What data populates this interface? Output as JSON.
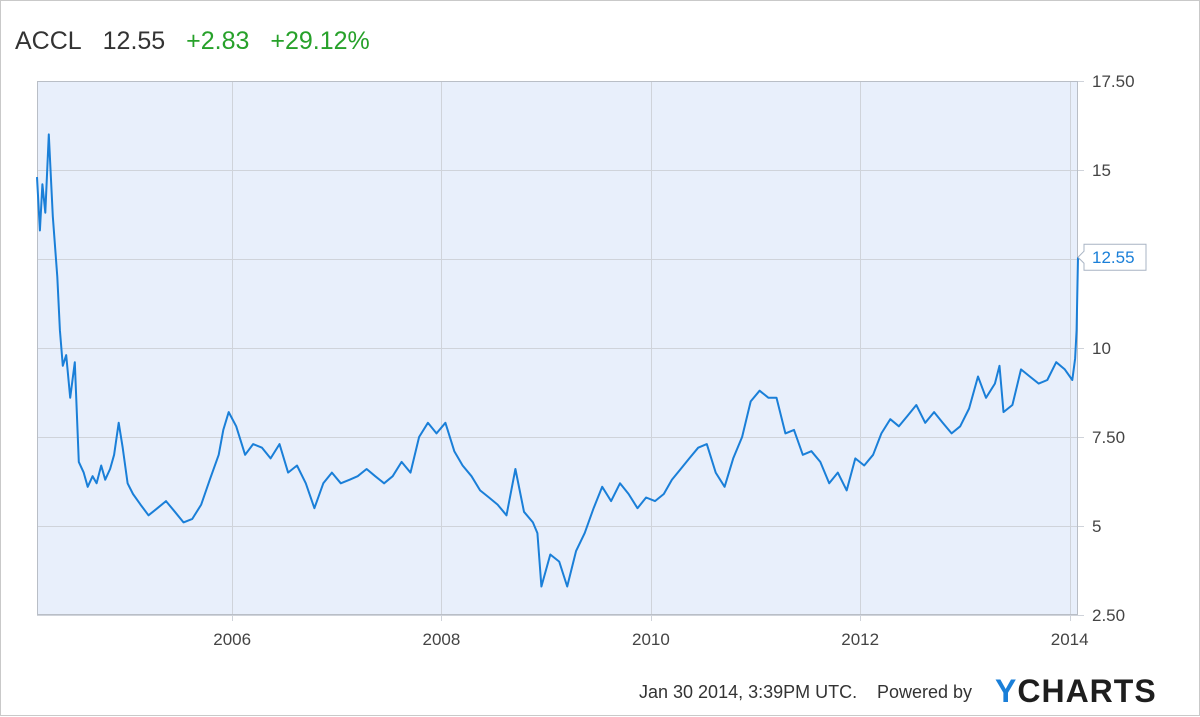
{
  "header": {
    "ticker": "ACCL",
    "price": "12.55",
    "change": "+2.83",
    "change_pct": "+29.12%"
  },
  "footer": {
    "timestamp": "Jan 30 2014, 3:39PM UTC.",
    "powered_by": "Powered by",
    "logo_text": "YCHARTS"
  },
  "colors": {
    "line": "#1a7fd8",
    "plot_bg": "#e8effb",
    "positive": "#27a12a",
    "grid": "#cfd3da"
  },
  "chart_data": {
    "type": "line",
    "title": "",
    "xlabel": "",
    "ylabel": "",
    "xlim": [
      "2004-02-20",
      "2014-01-30"
    ],
    "ylim": [
      2.5,
      17.5
    ],
    "x_ticks": [
      "2006",
      "2008",
      "2010",
      "2012",
      "2014"
    ],
    "x_tick_dates": [
      "2006-01-01",
      "2008-01-01",
      "2010-01-01",
      "2012-01-01",
      "2014-01-01"
    ],
    "y_ticks": [
      2.5,
      5,
      7.5,
      10,
      12.5,
      15,
      17.5
    ],
    "y_tick_labels": [
      "2.50",
      "5",
      "7.50",
      "10",
      "",
      "15",
      "17.50"
    ],
    "grid": true,
    "last_value_label": "12.55",
    "series": [
      {
        "x": [
          "2004-02-20",
          "2004-03-01",
          "2004-03-10",
          "2004-03-20",
          "2004-04-01",
          "2004-04-15",
          "2004-05-01",
          "2004-05-10",
          "2004-05-20",
          "2004-06-01",
          "2004-06-15",
          "2004-07-01",
          "2004-07-15",
          "2004-08-01",
          "2004-08-15",
          "2004-09-01",
          "2004-09-15",
          "2004-10-01",
          "2004-10-15",
          "2004-11-01",
          "2004-11-15",
          "2004-12-01",
          "2004-12-15",
          "2005-01-01",
          "2005-01-20",
          "2005-02-15",
          "2005-03-15",
          "2005-04-15",
          "2005-05-15",
          "2005-06-15",
          "2005-07-15",
          "2005-08-15",
          "2005-09-15",
          "2005-10-15",
          "2005-11-15",
          "2005-12-01",
          "2005-12-20",
          "2006-01-15",
          "2006-02-15",
          "2006-03-15",
          "2006-04-15",
          "2006-05-15",
          "2006-06-15",
          "2006-07-15",
          "2006-08-15",
          "2006-09-15",
          "2006-10-15",
          "2006-11-15",
          "2006-12-15",
          "2007-01-15",
          "2007-02-15",
          "2007-03-15",
          "2007-04-15",
          "2007-05-15",
          "2007-06-15",
          "2007-07-15",
          "2007-08-15",
          "2007-09-15",
          "2007-10-15",
          "2007-11-15",
          "2007-12-15",
          "2008-01-15",
          "2008-02-15",
          "2008-03-15",
          "2008-04-15",
          "2008-05-15",
          "2008-06-15",
          "2008-07-15",
          "2008-08-15",
          "2008-09-15",
          "2008-10-15",
          "2008-11-15",
          "2008-12-01",
          "2008-12-15",
          "2009-01-15",
          "2009-02-15",
          "2009-03-15",
          "2009-04-15",
          "2009-05-15",
          "2009-06-15",
          "2009-07-15",
          "2009-08-15",
          "2009-09-15",
          "2009-10-15",
          "2009-11-15",
          "2009-12-15",
          "2010-01-15",
          "2010-02-15",
          "2010-03-15",
          "2010-04-15",
          "2010-05-15",
          "2010-06-15",
          "2010-07-15",
          "2010-08-15",
          "2010-09-15",
          "2010-10-15",
          "2010-11-15",
          "2010-12-15",
          "2011-01-15",
          "2011-02-15",
          "2011-03-15",
          "2011-04-15",
          "2011-05-15",
          "2011-06-15",
          "2011-07-15",
          "2011-08-15",
          "2011-09-15",
          "2011-10-15",
          "2011-11-15",
          "2011-12-15",
          "2012-01-15",
          "2012-02-15",
          "2012-03-15",
          "2012-04-15",
          "2012-05-15",
          "2012-06-15",
          "2012-07-15",
          "2012-08-15",
          "2012-09-15",
          "2012-10-15",
          "2012-11-15",
          "2012-12-15",
          "2013-01-15",
          "2013-02-15",
          "2013-03-15",
          "2013-04-15",
          "2013-05-01",
          "2013-05-15",
          "2013-06-15",
          "2013-07-15",
          "2013-08-15",
          "2013-09-15",
          "2013-10-15",
          "2013-11-15",
          "2013-12-15",
          "2014-01-10",
          "2014-01-20",
          "2014-01-25",
          "2014-01-30"
        ],
        "y": [
          14.8,
          13.3,
          14.6,
          13.8,
          16.0,
          13.7,
          12.0,
          10.5,
          9.5,
          9.8,
          8.6,
          9.6,
          6.8,
          6.5,
          6.1,
          6.4,
          6.2,
          6.7,
          6.3,
          6.6,
          7.0,
          7.9,
          7.2,
          6.2,
          5.9,
          5.6,
          5.3,
          5.5,
          5.7,
          5.4,
          5.1,
          5.2,
          5.6,
          6.3,
          7.0,
          7.7,
          8.2,
          7.8,
          7.0,
          7.3,
          7.2,
          6.9,
          7.3,
          6.5,
          6.7,
          6.2,
          5.5,
          6.2,
          6.5,
          6.2,
          6.3,
          6.4,
          6.6,
          6.4,
          6.2,
          6.4,
          6.8,
          6.5,
          7.5,
          7.9,
          7.6,
          7.9,
          7.1,
          6.7,
          6.4,
          6.0,
          5.8,
          5.6,
          5.3,
          6.6,
          5.4,
          5.1,
          4.8,
          3.3,
          4.2,
          4.0,
          3.3,
          4.3,
          4.8,
          5.5,
          6.1,
          5.7,
          6.2,
          5.9,
          5.5,
          5.8,
          5.7,
          5.9,
          6.3,
          6.6,
          6.9,
          7.2,
          7.3,
          6.5,
          6.1,
          6.9,
          7.5,
          8.5,
          8.8,
          8.6,
          8.6,
          7.6,
          7.7,
          7.0,
          7.1,
          6.8,
          6.2,
          6.5,
          6.0,
          6.9,
          6.7,
          7.0,
          7.6,
          8.0,
          7.8,
          8.1,
          8.4,
          7.9,
          8.2,
          7.9,
          7.6,
          7.8,
          8.3,
          9.2,
          8.6,
          9.0,
          9.5,
          8.2,
          8.4,
          9.4,
          9.2,
          9.0,
          9.1,
          9.6,
          9.4,
          9.1,
          9.7,
          10.5,
          12.55
        ]
      }
    ]
  }
}
